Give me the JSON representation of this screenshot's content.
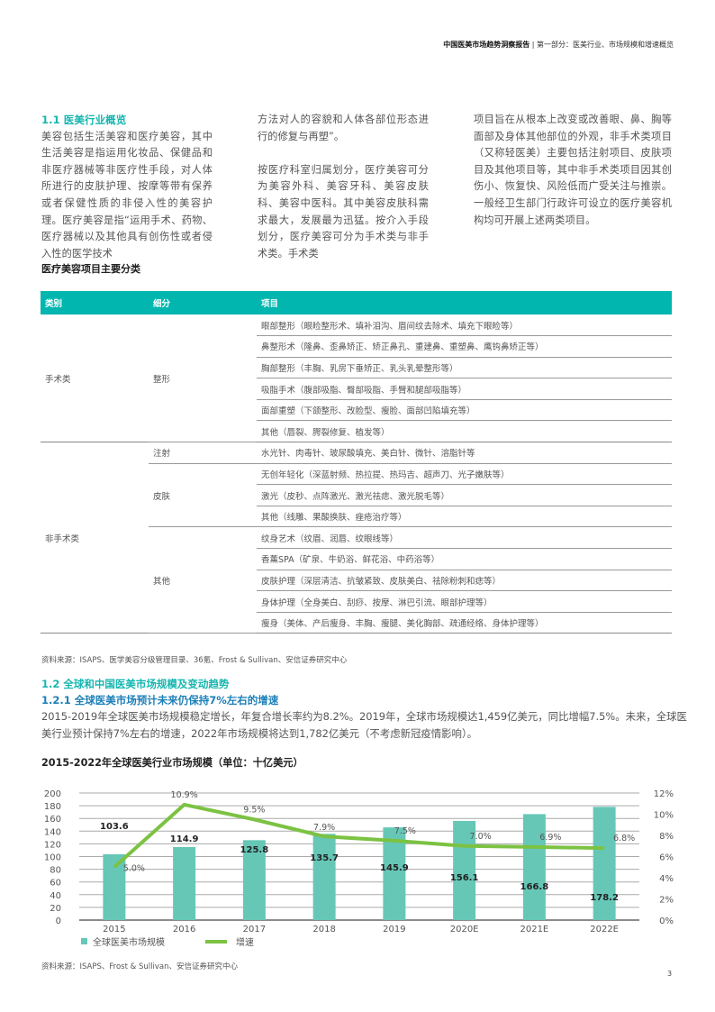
{
  "header": {
    "report": "中国医美市场趋势洞察报告",
    "section": "第一部分：医美行业、市场规模和增速概览"
  },
  "s11": {
    "heading": "1.1 医美行业概览",
    "col1": "美容包括生活美容和医疗美容，其中生活美容是指运用化妆品、保健品和非医疗器械等非医疗性手段，对人体所进行的皮肤护理、按摩等带有保养或者保健性质的非侵入性的美容护理。医疗美容是指“运用手术、药物、医疗器械以及其他具有创伤性或者侵入性的医学技术",
    "col2a": "方法对人的容貌和人体各部位形态进行的修复与再塑”。",
    "col2b": "按医疗科室归属划分，医疗美容可分为美容外科、美容牙科、美容皮肤科、美容中医科。其中美容皮肤科需求最大，发展最为迅猛。按介入手段划分，医疗美容可分为手术类与非手术类。手术类",
    "col3": "项目旨在从根本上改变或改善眼、鼻、胸等面部及身体其他部位的外观，非手术类项目（又称轻医美）主要包括注射项目、皮肤项目及其他项目等，其中非手术类项目因其创伤小、恢复快、风险低而广受关注与推崇。一般经卫生部门行政许可设立的医疗美容机构均可开展上述两类项目。"
  },
  "table": {
    "title": "医疗美容项目主要分类",
    "headers": [
      "类别",
      "细分",
      "项目"
    ],
    "groups": [
      {
        "category": "手术类",
        "subs": [
          {
            "name": "整形",
            "items": [
              "眼部整形（眼睑整形术、填补泪沟、眉间纹去除术、填充下眼睑等）",
              "鼻整形术（隆鼻、歪鼻矫正、矫正鼻孔、重建鼻、重塑鼻、鹰钩鼻矫正等）",
              "胸部整形（丰胸、乳房下垂矫正、乳头乳晕整形等）",
              "吸脂手术（腹部吸脂、臀部吸脂、手臂和腿部吸脂等）",
              "面部重塑（下颌整形、改脸型、瘦脸、面部凹陷填充等）",
              "其他（唇裂、腭裂修复、植发等）"
            ]
          }
        ]
      },
      {
        "category": "非手术类",
        "subs": [
          {
            "name": "注射",
            "items": [
              "水光针、肉毒针、玻尿酸填充、美白针、微针、溶脂针等"
            ]
          },
          {
            "name": "皮肤",
            "items": [
              "无创年轻化（深蓝射频、热拉提、热玛吉、超声刀、光子嫩肤等）",
              "激光（皮秒、点阵激光、激光祛痣、激光脱毛等）",
              "其他（线雕、果酸换肤、痤疮治疗等）"
            ]
          },
          {
            "name": "其他",
            "items": [
              "纹身艺术（纹眉、润唇、纹眼线等）",
              "香薰SPA（矿泉、牛奶浴、鲜花浴、中药浴等）",
              "皮肤护理（深层清洁、抗皱紧致、皮肤美白、祛除粉刺和痣等）",
              "身体护理（全身美白、刮痧、按摩、淋巴引流、眼部护理等）",
              "瘦身（美体、产后瘦身、丰胸、瘦腿、美化胸部、疏通经络、身体护理等）"
            ]
          }
        ]
      }
    ]
  },
  "source1": "资料来源：ISAPS、医学美容分级管理目录、36氪、Frost & Sullivan、安信证券研究中心",
  "s12": {
    "heading": "1.2 全球和中国医美市场规模及变动趋势",
    "sub": "1.2.1 全球医美市场预计未来仍保持7%左右的增速",
    "para": "2015-2019年全球医美市场规模稳定增长，年复合增长率约为8.2%。2019年，全球市场规模达1,459亿美元，同比增幅7.5%。未来，全球医美行业预计保持7%左右的增速，2022年市场规模将达到1,782亿美元（不考虑新冠疫情影响）。"
  },
  "chart_data": {
    "type": "bar+line",
    "title": "2015-2022年全球医美行业市场规模（单位：十亿美元）",
    "categories": [
      "2015",
      "2016",
      "2017",
      "2018",
      "2019",
      "2020E",
      "2021E",
      "2022E"
    ],
    "series": [
      {
        "name": "全球医美市场规模",
        "type": "bar",
        "axis": "left",
        "values": [
          103.6,
          114.9,
          125.8,
          135.7,
          145.9,
          156.1,
          166.8,
          178.2
        ],
        "labels": [
          "103.6",
          "114.9",
          "125.8",
          "135.7",
          "145.9",
          "156.1",
          "166.8",
          "178.2"
        ],
        "color": "#66c7b7"
      },
      {
        "name": "增速",
        "type": "line",
        "axis": "right",
        "values": [
          5.0,
          10.9,
          9.5,
          7.9,
          7.5,
          7.0,
          6.9,
          6.8
        ],
        "labels": [
          "5.0%",
          "10.9%",
          "9.5%",
          "7.9%",
          "7.5%",
          "7.0%",
          "6.9%",
          "6.8%"
        ],
        "color": "#7cc243"
      }
    ],
    "yleft": {
      "range": [
        0,
        200
      ],
      "ticks": [
        "0",
        "20",
        "40",
        "60",
        "80",
        "100",
        "120",
        "140",
        "160",
        "180",
        "200"
      ]
    },
    "yright": {
      "range": [
        0,
        12
      ],
      "ticks": [
        "0%",
        "2%",
        "4%",
        "6%",
        "8%",
        "10%",
        "12%"
      ]
    },
    "grid": true,
    "legend": "bottom-left"
  },
  "source2": "资料来源：ISAPS、Frost & Sullivan、安信证券研究中心",
  "page": "3"
}
